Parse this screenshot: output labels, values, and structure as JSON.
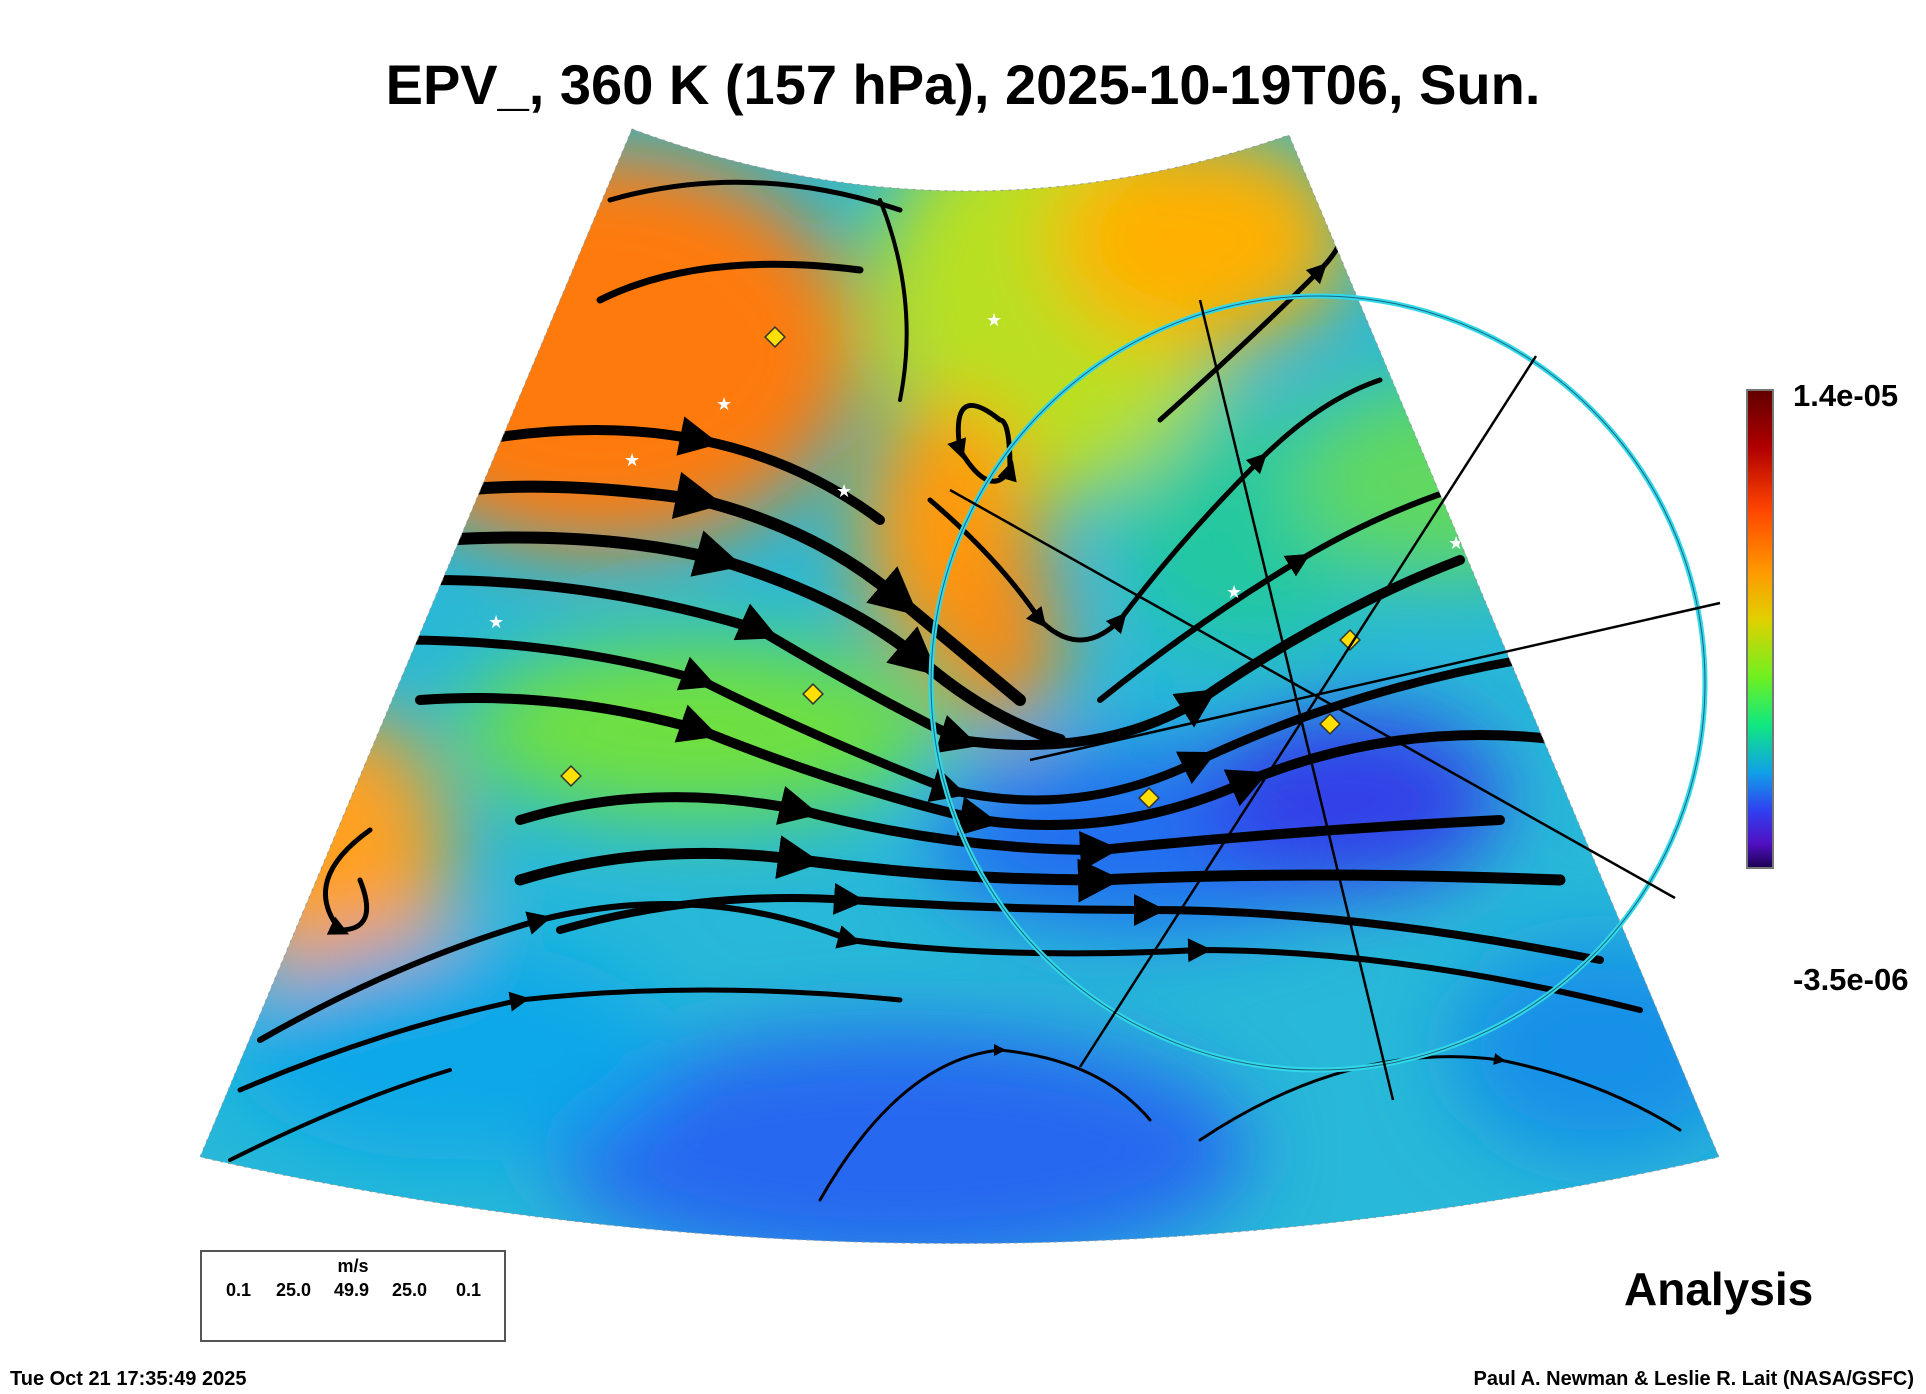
{
  "title": "EPV_, 360 K (157 hPa), 2025-10-19T06, Sun.",
  "chart_data": {
    "type": "heatmap",
    "title": "EPV_, 360 K (157 hPa), 2025-10-19T06, Sun.",
    "variable": "EPV_",
    "level": "360 K (157 hPa)",
    "valid_time": "2025-10-19T06",
    "colorbar": {
      "max_label": "1.4e-05",
      "min_label": "-3.5e-06",
      "range": [
        -3.5e-06,
        1.4e-05
      ],
      "colors": [
        "#1a0050",
        "#5a10d0",
        "#2060f0",
        "#10a8e0",
        "#10e878",
        "#90f020",
        "#f0c800",
        "#ff8800",
        "#ff4400",
        "#b00000",
        "#600000"
      ]
    },
    "overlay": "wind streamlines",
    "wind_legend": {
      "unit": "m/s",
      "values": [
        "0.1",
        "25.0",
        "49.9",
        "25.0",
        "0.1"
      ]
    },
    "label": "Analysis"
  },
  "footer": {
    "timestamp": "Tue Oct 21 17:35:49 2025",
    "credit": "Paul A. Newman & Leslie R. Lait (NASA/GSFC)"
  }
}
